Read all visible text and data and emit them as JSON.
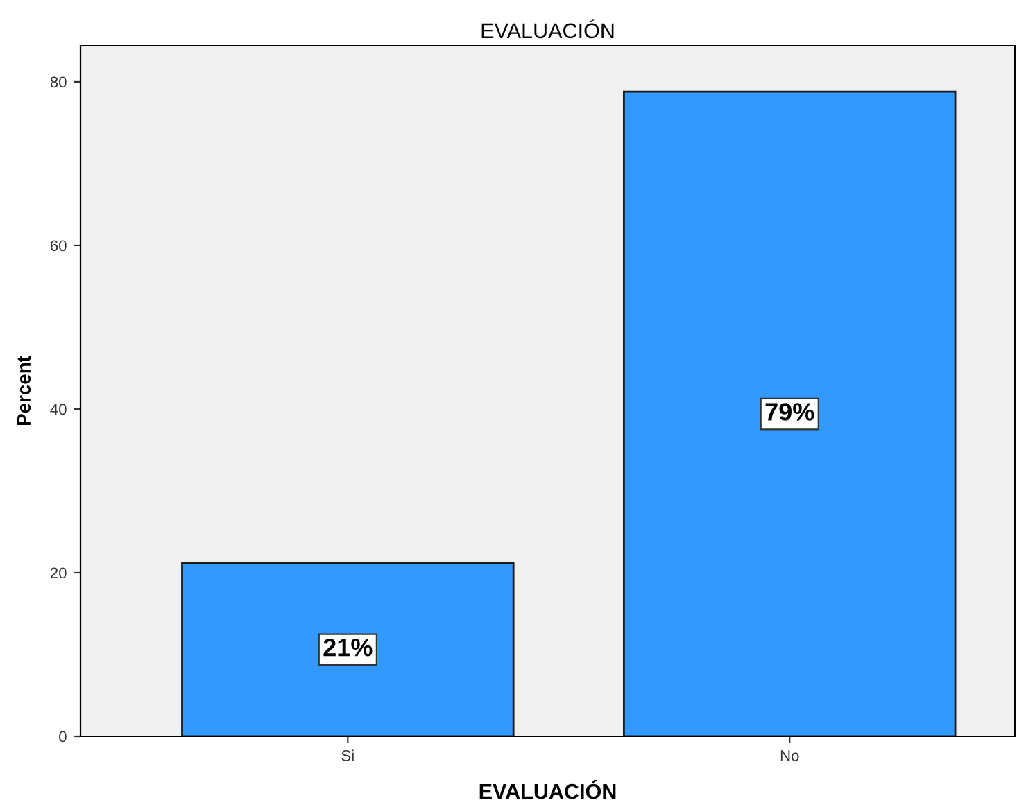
{
  "chart_data": {
    "type": "bar",
    "title": "EVALUACIÓN",
    "xlabel": "EVALUACIÓN",
    "ylabel": "Percent",
    "categories": [
      "Si",
      "No"
    ],
    "values": [
      21.2,
      78.8
    ],
    "value_labels": [
      "21%",
      "79%"
    ],
    "color": "#3399ff",
    "ylim": [
      0,
      84.4
    ],
    "yticks": [
      0,
      20,
      40,
      60,
      80
    ],
    "grid": false,
    "legend": false
  }
}
